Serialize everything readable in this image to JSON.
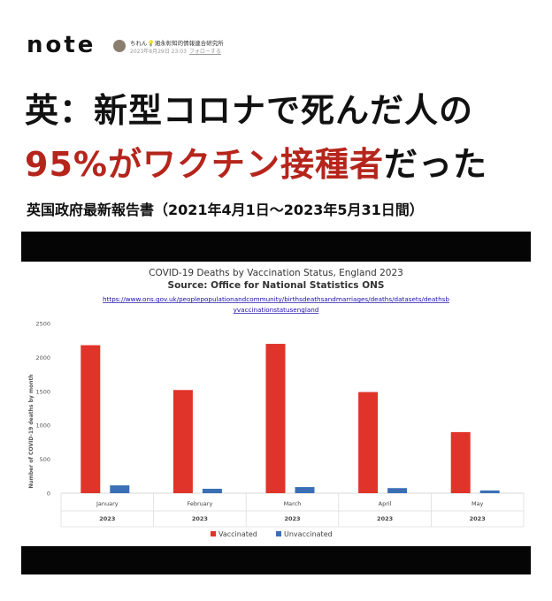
{
  "header": {
    "logo": "note",
    "author_name": "ちれん💡湘永彰知的情報連合研究所",
    "date": "2023年8月29日 23:03",
    "follow_label": "フォローする"
  },
  "headline": {
    "line1": "英：新型コロナで死んだ人の",
    "line2_red": "95%がワクチン接種者",
    "line2_black": "だった"
  },
  "subheadline": "英国政府最新報告書（2021年4月1日～2023年5月31日間）",
  "colors": {
    "headline_red": "#b5251c",
    "vaccinated": "#e0342a",
    "unvaccinated": "#3a6fb5"
  },
  "chart_data": {
    "type": "bar",
    "title": "COVID-19 Deaths by Vaccination Status, England 2023",
    "subtitle": "Source: Office for National Statistics ONS",
    "source_url_line1": "https://www.ons.gov.uk/peoplepopulationandcommunity/birthsdeathsandmarriages/deaths/datasets/deathsb",
    "source_url_line2": "yvaccinationstatusengland",
    "ylabel": "Number of COVID-19 deaths by month",
    "xlabel": "",
    "ylim": [
      0,
      2500
    ],
    "yticks": [
      "0",
      "500",
      "1000",
      "1500",
      "2000",
      "2500"
    ],
    "categories": [
      "January",
      "February",
      "March",
      "April",
      "May"
    ],
    "category_sublabel": "2023",
    "series": [
      {
        "name": "Vaccinated",
        "values": [
          2180,
          1520,
          2200,
          1490,
          900
        ]
      },
      {
        "name": "Unvaccinated",
        "values": [
          115,
          65,
          90,
          75,
          40
        ]
      }
    ],
    "legend_position": "bottom",
    "grid": false
  }
}
